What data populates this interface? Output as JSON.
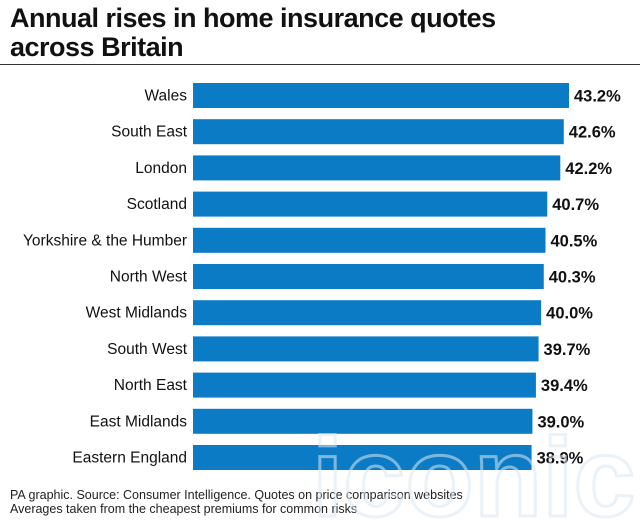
{
  "title_line1": "Annual rises in home insurance quotes",
  "title_line2": "across Britain",
  "footer": {
    "line1": "PA graphic. Source: Consumer Intelligence. Quotes on price comparison websites",
    "line2": "Averages taken from the cheapest premiums for common risks"
  },
  "watermark": "iconic",
  "colors": {
    "bar": "#0a7bc4",
    "text": "#111111",
    "watermark": "#d9e8f3"
  },
  "chart_data": {
    "type": "bar",
    "orientation": "horizontal",
    "categories": [
      "Wales",
      "South East",
      "London",
      "Scotland",
      "Yorkshire & the Humber",
      "North West",
      "West Midlands",
      "South West",
      "North East",
      "East Midlands",
      "Eastern England"
    ],
    "values": [
      43.2,
      42.6,
      42.2,
      40.7,
      40.5,
      40.3,
      40.0,
      39.7,
      39.4,
      39.0,
      38.9
    ],
    "data_labels": [
      "43.2%",
      "42.6%",
      "42.2%",
      "40.7%",
      "40.5%",
      "40.3%",
      "40.0%",
      "39.7%",
      "39.4%",
      "39.0%",
      "38.9%"
    ],
    "title": "Annual rises in home insurance quotes across Britain",
    "xlabel": "",
    "ylabel": "",
    "xlim": [
      0,
      43.2
    ],
    "grid": false,
    "legend": "none"
  }
}
